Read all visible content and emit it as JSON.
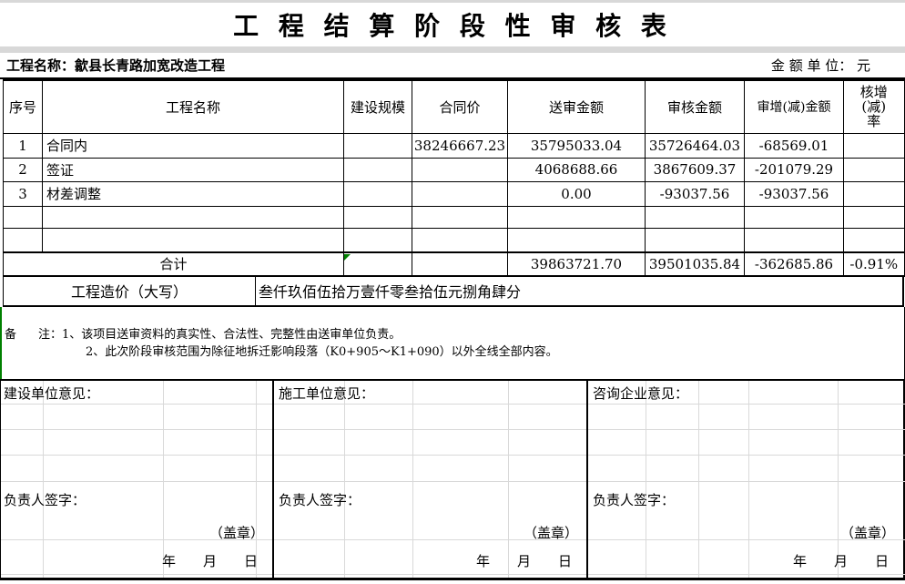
{
  "title": "工 程 结 算 阶 段 性 审 核 表",
  "header": {
    "project_name": "工程名称：歙县长青路加宽改造工程",
    "unit_label": "金 额 单 位： 元"
  },
  "table": {
    "columns": [
      "序号",
      "工程名称",
      "建设规模",
      "合同价",
      "送审金额",
      "审核金额",
      "审增(减)金额",
      "核增\n(减)\n率"
    ],
    "rows": [
      {
        "cells": [
          "1",
          "合同内",
          "",
          "38246667.23",
          "35795033.04",
          "35726464.03",
          "-68569.01",
          ""
        ]
      },
      {
        "cells": [
          "2",
          "签证",
          "",
          "",
          "4068688.66",
          "3867609.37",
          "-201079.29",
          ""
        ]
      },
      {
        "cells": [
          "3",
          "材差调整",
          "",
          "",
          "0.00",
          "-93037.56",
          "-93037.56",
          ""
        ]
      },
      {
        "cells": [
          "",
          "",
          "",
          "",
          "",
          "",
          "",
          ""
        ]
      },
      {
        "cells": [
          "",
          "",
          "",
          "",
          "",
          "",
          "",
          ""
        ]
      }
    ],
    "total_row": {
      "label": "合计",
      "cells": [
        "",
        "",
        "39863721.70",
        "39501035.84",
        "-362685.86",
        "-0.91%"
      ]
    }
  },
  "amount_in_words": {
    "label": "工程造价（大写）",
    "value": "叁仟玖佰伍拾万壹仟零叁拾伍元捌角肆分"
  },
  "remarks": {
    "label_bei": "备",
    "label_zhu": "注：",
    "lines": [
      "1、该项目送审资料的真实性、合法性、完整性由送审单位负责。",
      "2、此次阶段审核范围为除征地拆迁影响段落（K0+905～K1+090）以外全线全部内容。"
    ]
  },
  "opinions": [
    {
      "title": "建设单位意见：",
      "sign_label": "负责人签字：",
      "seal": "（盖章）",
      "date": {
        "year": "年",
        "month": "月",
        "day": "日"
      }
    },
    {
      "title": "施工单位意见：",
      "sign_label": "负责人签字：",
      "seal": "（盖章）",
      "date": {
        "year": "年",
        "month": "月",
        "day": "日"
      }
    },
    {
      "title": "咨询企业意见：",
      "sign_label": "负责人签字：",
      "seal": "（盖章）",
      "date": {
        "year": "年",
        "month": "月",
        "day": "日"
      }
    }
  ],
  "colors": {
    "green_marker": "#008000",
    "strip_gray": "#d8d8d8"
  }
}
